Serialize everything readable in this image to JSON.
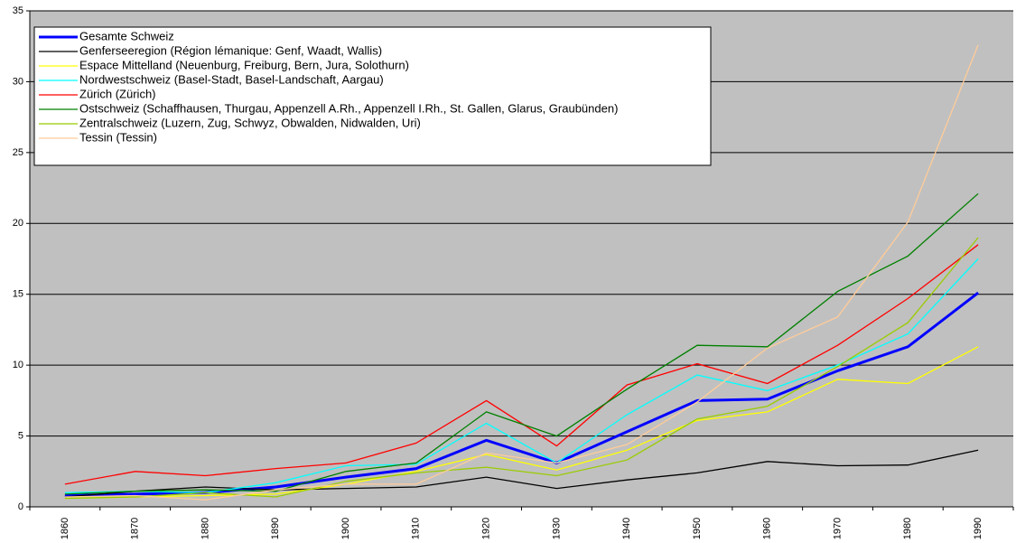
{
  "chart_data": {
    "type": "line",
    "categories": [
      "1860",
      "1870",
      "1880",
      "1890",
      "1900",
      "1910",
      "1920",
      "1930",
      "1940",
      "1950",
      "1960",
      "1970",
      "1980",
      "1990"
    ],
    "series": [
      {
        "name": "Gesamte Schweiz",
        "color": "#0000ff",
        "values": [
          0.8,
          0.9,
          1.0,
          1.4,
          2.1,
          2.7,
          4.7,
          3.1,
          5.3,
          7.5,
          7.6,
          9.6,
          11.3,
          15.1
        ]
      },
      {
        "name": "Genferseeregion (Région lémanique: Genf, Waadt, Wallis)",
        "color": "#000000",
        "values": [
          0.7,
          1.1,
          1.4,
          1.2,
          1.3,
          1.4,
          2.1,
          1.3,
          1.9,
          2.4,
          3.2,
          2.9,
          2.95,
          4.0
        ]
      },
      {
        "name": "Espace Mittelland (Neuenburg, Freiburg, Bern, Jura, Solothurn)",
        "color": "#ffff00",
        "values": [
          0.6,
          0.7,
          0.8,
          0.9,
          1.6,
          2.5,
          3.7,
          2.6,
          4.0,
          6.1,
          6.7,
          9.0,
          8.7,
          11.3
        ]
      },
      {
        "name": "Nordwestschweiz (Basel-Stadt, Basel-Landschaft, Aargau)",
        "color": "#00ffff",
        "values": [
          1.0,
          1.1,
          1.0,
          1.7,
          2.9,
          3.0,
          5.9,
          3.1,
          6.5,
          9.3,
          8.2,
          10.0,
          12.2,
          17.5
        ]
      },
      {
        "name": "Zürich (Zürich)",
        "color": "#ff0000",
        "values": [
          1.6,
          2.5,
          2.2,
          2.7,
          3.1,
          4.5,
          7.5,
          4.3,
          8.6,
          10.1,
          8.7,
          11.4,
          14.7,
          18.5
        ]
      },
      {
        "name": "Ostschweiz (Schaffhausen, Thurgau, Appenzell A.Rh., Appenzell I.Rh., St. Gallen, Glarus, Graubünden)",
        "color": "#008000",
        "values": [
          0.9,
          1.1,
          1.2,
          1.1,
          2.5,
          3.1,
          6.7,
          5.0,
          8.3,
          11.4,
          11.3,
          15.2,
          17.7,
          22.1
        ]
      },
      {
        "name": "Zentralschweiz (Luzern, Zug, Schwyz, Obwalden, Nidwalden, Uri)",
        "color": "#99cc00",
        "values": [
          0.6,
          0.7,
          1.0,
          0.7,
          1.8,
          2.4,
          2.8,
          2.2,
          3.3,
          6.2,
          7.1,
          9.9,
          13.0,
          19.0
        ]
      },
      {
        "name": "Tessin (Tessin)",
        "color": "#ffcc99",
        "values": [
          0.7,
          0.8,
          0.5,
          1.2,
          1.6,
          1.6,
          3.8,
          3.1,
          4.4,
          7.4,
          11.2,
          13.4,
          20.1,
          32.6
        ]
      }
    ],
    "ylim": [
      0,
      35
    ],
    "yticks": [
      0,
      5,
      10,
      15,
      20,
      25,
      30,
      35
    ],
    "grid": true,
    "legend": "top-left",
    "background": "#c0c0c0"
  }
}
